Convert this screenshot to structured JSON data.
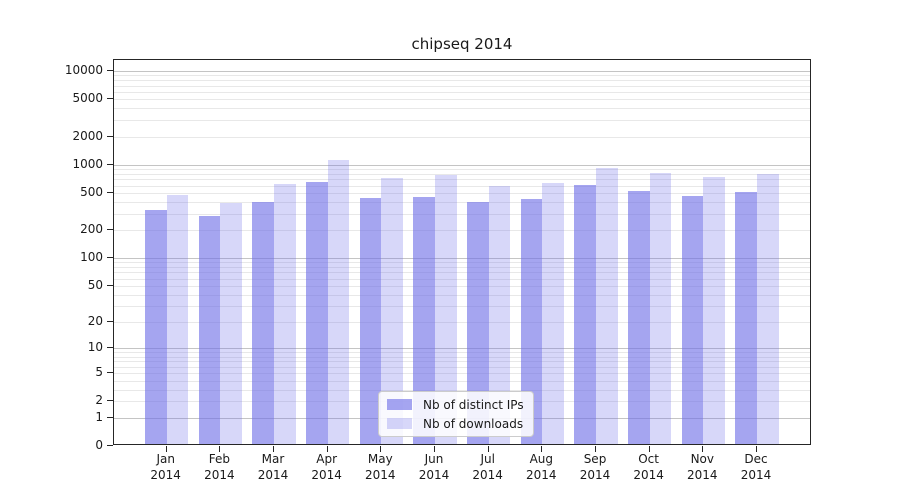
{
  "chart_data": {
    "type": "bar",
    "title": "chipseq 2014",
    "categories": [
      "Jan",
      "Feb",
      "Mar",
      "Apr",
      "May",
      "Jun",
      "Jul",
      "Aug",
      "Sep",
      "Oct",
      "Nov",
      "Dec"
    ],
    "category_year": "2014",
    "series": [
      {
        "name": "Nb of distinct IPs",
        "color": "rgba(109,109,231,0.62)",
        "values": [
          315,
          270,
          385,
          620,
          425,
          435,
          380,
          410,
          575,
          495,
          440,
          490
        ]
      },
      {
        "name": "Nb of downloads",
        "color": "rgba(109,109,231,0.27)",
        "values": [
          450,
          370,
          600,
          1080,
          680,
          745,
          570,
          610,
          870,
          780,
          705,
          755
        ]
      }
    ],
    "yscale": "log1p",
    "ylim": [
      0,
      13100
    ],
    "y_ticks": [
      0,
      1,
      2,
      5,
      10,
      20,
      50,
      100,
      200,
      500,
      1000,
      2000,
      5000,
      10000
    ],
    "grid": {
      "major_ticks": [
        1,
        10,
        100,
        1000,
        10000
      ],
      "minor_color": "#e8e8e8",
      "major_color": "#c4c4c4"
    },
    "legend": {
      "position": "lower center"
    }
  }
}
